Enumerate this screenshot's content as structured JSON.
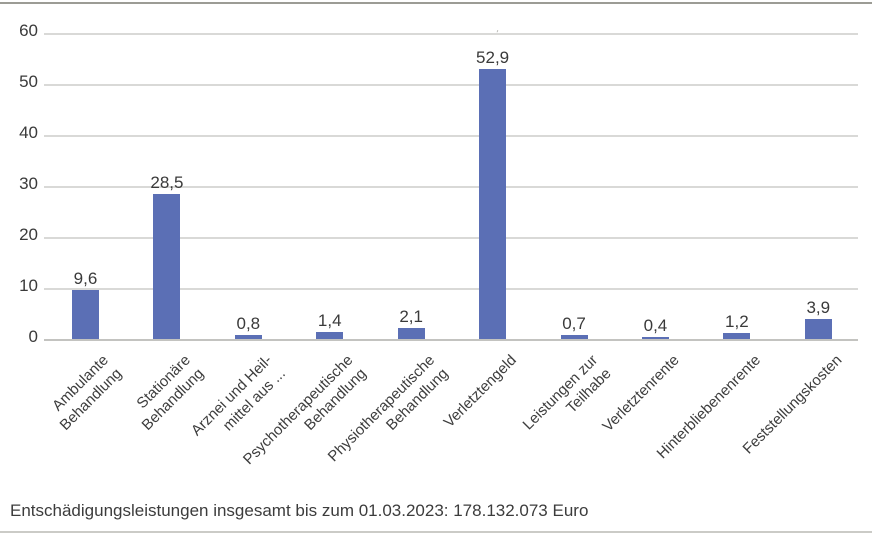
{
  "chart_data": {
    "type": "bar",
    "title": "",
    "categories": [
      "Ambulante\nBehandlung",
      "Stationäre\nBehandlung",
      "Arznei und Heil-\nmittel aus ...",
      "Psychotherapeutische\nBehandlung",
      "Physiotherapeutische\nBehandlung",
      "Verletztengeld",
      "Leistungen zur\nTeilhabe",
      "Verletztenrente",
      "Hinterbliebenenrente",
      "Feststellungskosten"
    ],
    "values": [
      9.6,
      28.5,
      0.8,
      1.4,
      2.1,
      52.9,
      0.7,
      0.4,
      1.2,
      3.9
    ],
    "value_labels": [
      "9,6",
      "28,5",
      "0,8",
      "1,4",
      "2,1",
      "52,9",
      "0,7",
      "0,4",
      "1,2",
      "3,9"
    ],
    "y_ticks": [
      0,
      10,
      20,
      30,
      40,
      50,
      60
    ],
    "ylim": [
      0,
      60
    ],
    "xlabel": "",
    "ylabel": "",
    "grid": true,
    "legend": "none",
    "bar_color": "#5b6fb5",
    "clipped_label_artifact": "52,9"
  },
  "caption": {
    "text": "Entschädigungsleistungen insgesamt bis zum 01.03.2023: 178.132.073 Euro"
  },
  "colors": {
    "bar": "#5b6fb5",
    "gridline": "#d9d9d7",
    "axis_line": "#c3c3c0",
    "text": "#3d3d3d",
    "top_border": "#9c9c95",
    "bottom_border": "#cbcbc7",
    "background": "#ffffff"
  }
}
